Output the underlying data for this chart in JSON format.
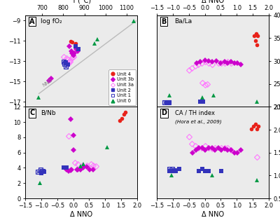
{
  "panel_A": {
    "xlim_T": [
      620,
      1150
    ],
    "ylim": [
      -17.5,
      -8.5
    ],
    "yticks": [
      -17,
      -15,
      -13,
      -11,
      -9
    ],
    "xticks_T": [
      700,
      800,
      900,
      1000,
      1100
    ],
    "nno_line": {
      "x": [
        685,
        1145
      ],
      "y": [
        -16.2,
        -9.05
      ]
    },
    "unit4": {
      "T": [
        835,
        843,
        858
      ],
      "y": [
        -11.05,
        -11.15,
        -11.25
      ]
    },
    "unit3b": {
      "T": [
        828,
        838,
        843,
        848,
        853,
        862,
        867,
        732,
        742
      ],
      "y": [
        -11.55,
        -12.05,
        -12.25,
        -12.45,
        -12.25,
        -11.85,
        -12.05,
        -14.95,
        -14.75
      ]
    },
    "unit3a": {
      "T": [
        802,
        817,
        822,
        827,
        832,
        842,
        847,
        822,
        832
      ],
      "y": [
        -12.55,
        -12.75,
        -12.85,
        -13.05,
        -12.95,
        -12.65,
        -12.55,
        -13.25,
        -13.05
      ]
    },
    "unit2": {
      "T": [
        858,
        872,
        812,
        822
      ],
      "y": [
        -11.55,
        -11.85,
        -13.15,
        -13.35
      ]
    },
    "unit1": {
      "T": [
        802,
        807,
        812
      ],
      "y": [
        -13.05,
        -13.25,
        -13.55
      ]
    },
    "unit0": {
      "T": [
        682,
        947,
        962,
        1132
      ],
      "y": [
        -16.55,
        -11.25,
        -10.85,
        -9.1
      ]
    }
  },
  "panel_B": {
    "xlim": [
      -1.5,
      2.0
    ],
    "ylim": [
      20,
      40
    ],
    "yticks": [
      20,
      25,
      30,
      35,
      40
    ],
    "unit4": {
      "x": [
        1.55,
        1.6,
        1.65,
        1.58,
        1.63
      ],
      "y": [
        35.5,
        36.0,
        35.5,
        34.5,
        33.5
      ]
    },
    "unit3b_fill": {
      "x": [
        -0.25,
        -0.15,
        0.02,
        0.12,
        0.22,
        0.35,
        0.5,
        0.62,
        0.72,
        0.82,
        0.92,
        1.02,
        1.12
      ],
      "y": [
        29.5,
        29.8,
        30.2,
        30.0,
        29.8,
        30.0,
        29.5,
        29.8,
        29.5,
        29.8,
        29.5,
        29.5,
        29.2
      ]
    },
    "unit3b_open": {
      "x": [
        0.02,
        0.07,
        -0.08
      ],
      "y": [
        24.8,
        25.0,
        25.2
      ]
    },
    "unit3a": {
      "x": [
        -0.5,
        -0.4,
        -0.3,
        -0.2,
        -0.1,
        0.02,
        0.12,
        0.22,
        0.42,
        0.52,
        0.62,
        0.72,
        0.82
      ],
      "y": [
        28.0,
        28.5,
        29.0,
        29.2,
        29.5,
        29.8,
        29.5,
        29.2,
        29.5,
        29.5,
        29.5,
        29.8,
        29.5
      ]
    },
    "unit2": {
      "x": [
        -1.2,
        -1.1,
        -0.15,
        -0.05
      ],
      "y": [
        21.0,
        21.0,
        21.2,
        21.2
      ]
    },
    "unit1": {
      "x": [
        -1.25,
        -1.18,
        -1.12
      ],
      "y": [
        21.0,
        21.0,
        21.0
      ]
    },
    "unit0": {
      "x": [
        -1.1,
        -0.08,
        0.27,
        1.62
      ],
      "y": [
        22.5,
        22.0,
        22.5,
        21.2
      ]
    }
  },
  "panel_C": {
    "xlim": [
      -1.5,
      2.0
    ],
    "ylim": [
      0,
      12
    ],
    "yticks": [
      0,
      2,
      4,
      6,
      8,
      10,
      12
    ],
    "unit4": {
      "x": [
        1.45,
        1.52,
        1.58,
        1.63
      ],
      "y": [
        10.2,
        10.5,
        11.0,
        11.3
      ]
    },
    "unit3b_fill": {
      "x": [
        -0.08,
        0.02,
        0.12,
        0.22,
        0.32,
        0.42,
        0.52,
        0.62,
        0.02,
        0.15,
        -0.08,
        -0.15,
        -0.22,
        -0.05
      ],
      "y": [
        10.4,
        6.3,
        3.8,
        3.8,
        4.0,
        4.1,
        3.8,
        3.8,
        8.3,
        3.8,
        3.7,
        3.6,
        3.8,
        3.8
      ]
    },
    "unit3a": {
      "x": [
        -0.15,
        0.05,
        0.15,
        0.3,
        0.42,
        0.55,
        0.62,
        0.72
      ],
      "y": [
        8.2,
        4.7,
        4.5,
        4.3,
        4.3,
        4.5,
        4.3,
        4.2
      ]
    },
    "unit2": {
      "x": [
        -1.0,
        -0.92,
        -0.3,
        -0.2
      ],
      "y": [
        3.3,
        3.5,
        4.0,
        4.0
      ]
    },
    "unit1": {
      "x": [
        -1.1,
        -1.02,
        -0.95
      ],
      "y": [
        3.5,
        3.8,
        3.6
      ]
    },
    "unit0": {
      "x": [
        -1.05,
        0.22,
        0.32,
        1.05
      ],
      "y": [
        2.0,
        4.2,
        4.5,
        6.7
      ]
    }
  },
  "panel_D": {
    "xlim": [
      -1.5,
      2.0
    ],
    "ylim": [
      0.5,
      2.5
    ],
    "yticks": [
      0.5,
      1.0,
      1.5,
      2.0,
      2.5
    ],
    "unit4": {
      "x": [
        1.45,
        1.52,
        1.58,
        1.63,
        1.68
      ],
      "y": [
        2.02,
        2.07,
        2.12,
        2.02,
        2.07
      ]
    },
    "unit3b_fill": {
      "x": [
        -0.38,
        -0.28,
        -0.18,
        -0.08,
        0.02,
        0.12,
        0.22,
        0.32,
        0.42,
        0.52,
        0.62,
        0.72,
        0.82,
        0.92,
        1.02,
        1.12
      ],
      "y": [
        1.5,
        1.55,
        1.6,
        1.6,
        1.55,
        1.6,
        1.6,
        1.55,
        1.6,
        1.55,
        1.58,
        1.55,
        1.55,
        1.5,
        1.5,
        1.55
      ]
    },
    "unit3b_open": {
      "x": [
        1.62
      ],
      "y": [
        1.4
      ]
    },
    "unit3a": {
      "x": [
        -0.5,
        -0.4,
        -0.3,
        -0.2,
        -0.1,
        0.02,
        0.12,
        0.22,
        0.32,
        0.52,
        0.62,
        0.72,
        0.82
      ],
      "y": [
        1.85,
        1.7,
        1.65,
        1.6,
        1.6,
        1.65,
        1.6,
        1.58,
        1.6,
        1.6,
        1.6,
        1.6,
        1.55
      ]
    },
    "unit2": {
      "x": [
        -1.1,
        -1.0,
        -0.9,
        -0.8,
        -0.18,
        -0.08,
        0.02,
        0.12,
        0.52
      ],
      "y": [
        1.1,
        1.1,
        1.1,
        1.15,
        1.1,
        1.15,
        1.1,
        1.1,
        1.1
      ]
    },
    "unit1": {
      "x": [
        -1.1,
        -1.02,
        -0.95
      ],
      "y": [
        1.15,
        1.15,
        1.12
      ]
    },
    "unit0": {
      "x": [
        -1.05,
        0.22,
        1.62
      ],
      "y": [
        1.0,
        1.0,
        0.9
      ]
    }
  },
  "colors": {
    "unit4": "#e8221a",
    "unit3b": "#cc00cc",
    "unit3a": "#ff77ff",
    "unit2": "#3333bb",
    "unit1": "#3333bb",
    "unit0": "#009944"
  },
  "bg_color": "#ebebeb"
}
